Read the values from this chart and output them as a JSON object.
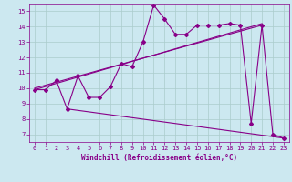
{
  "xlabel": "Windchill (Refroidissement éolien,°C)",
  "xlim": [
    -0.5,
    23.5
  ],
  "ylim": [
    6.5,
    15.5
  ],
  "xticks": [
    0,
    1,
    2,
    3,
    4,
    5,
    6,
    7,
    8,
    9,
    10,
    11,
    12,
    13,
    14,
    15,
    16,
    17,
    18,
    19,
    20,
    21,
    22,
    23
  ],
  "yticks": [
    7,
    8,
    9,
    10,
    11,
    12,
    13,
    14,
    15
  ],
  "bg_color": "#cce8f0",
  "grid_color": "#aacccc",
  "line_color": "#880088",
  "main_x": [
    0,
    1,
    2,
    3,
    4,
    5,
    6,
    7,
    8,
    9,
    10,
    11,
    12,
    13,
    14,
    15,
    16,
    17,
    18,
    19,
    20,
    21,
    22,
    23
  ],
  "main_y": [
    9.9,
    9.9,
    10.5,
    8.65,
    10.8,
    9.4,
    9.4,
    10.1,
    11.6,
    11.4,
    13.0,
    15.4,
    14.5,
    13.5,
    13.5,
    14.1,
    14.1,
    14.1,
    14.2,
    14.1,
    7.7,
    14.1,
    7.0,
    6.75
  ],
  "upper_line_x": [
    0,
    21
  ],
  "upper_line_y": [
    10.0,
    14.1
  ],
  "lower_line_x": [
    3,
    23
  ],
  "lower_line_y": [
    8.65,
    6.75
  ],
  "middle_line_x": [
    0,
    21
  ],
  "middle_line_y": [
    9.9,
    14.2
  ]
}
